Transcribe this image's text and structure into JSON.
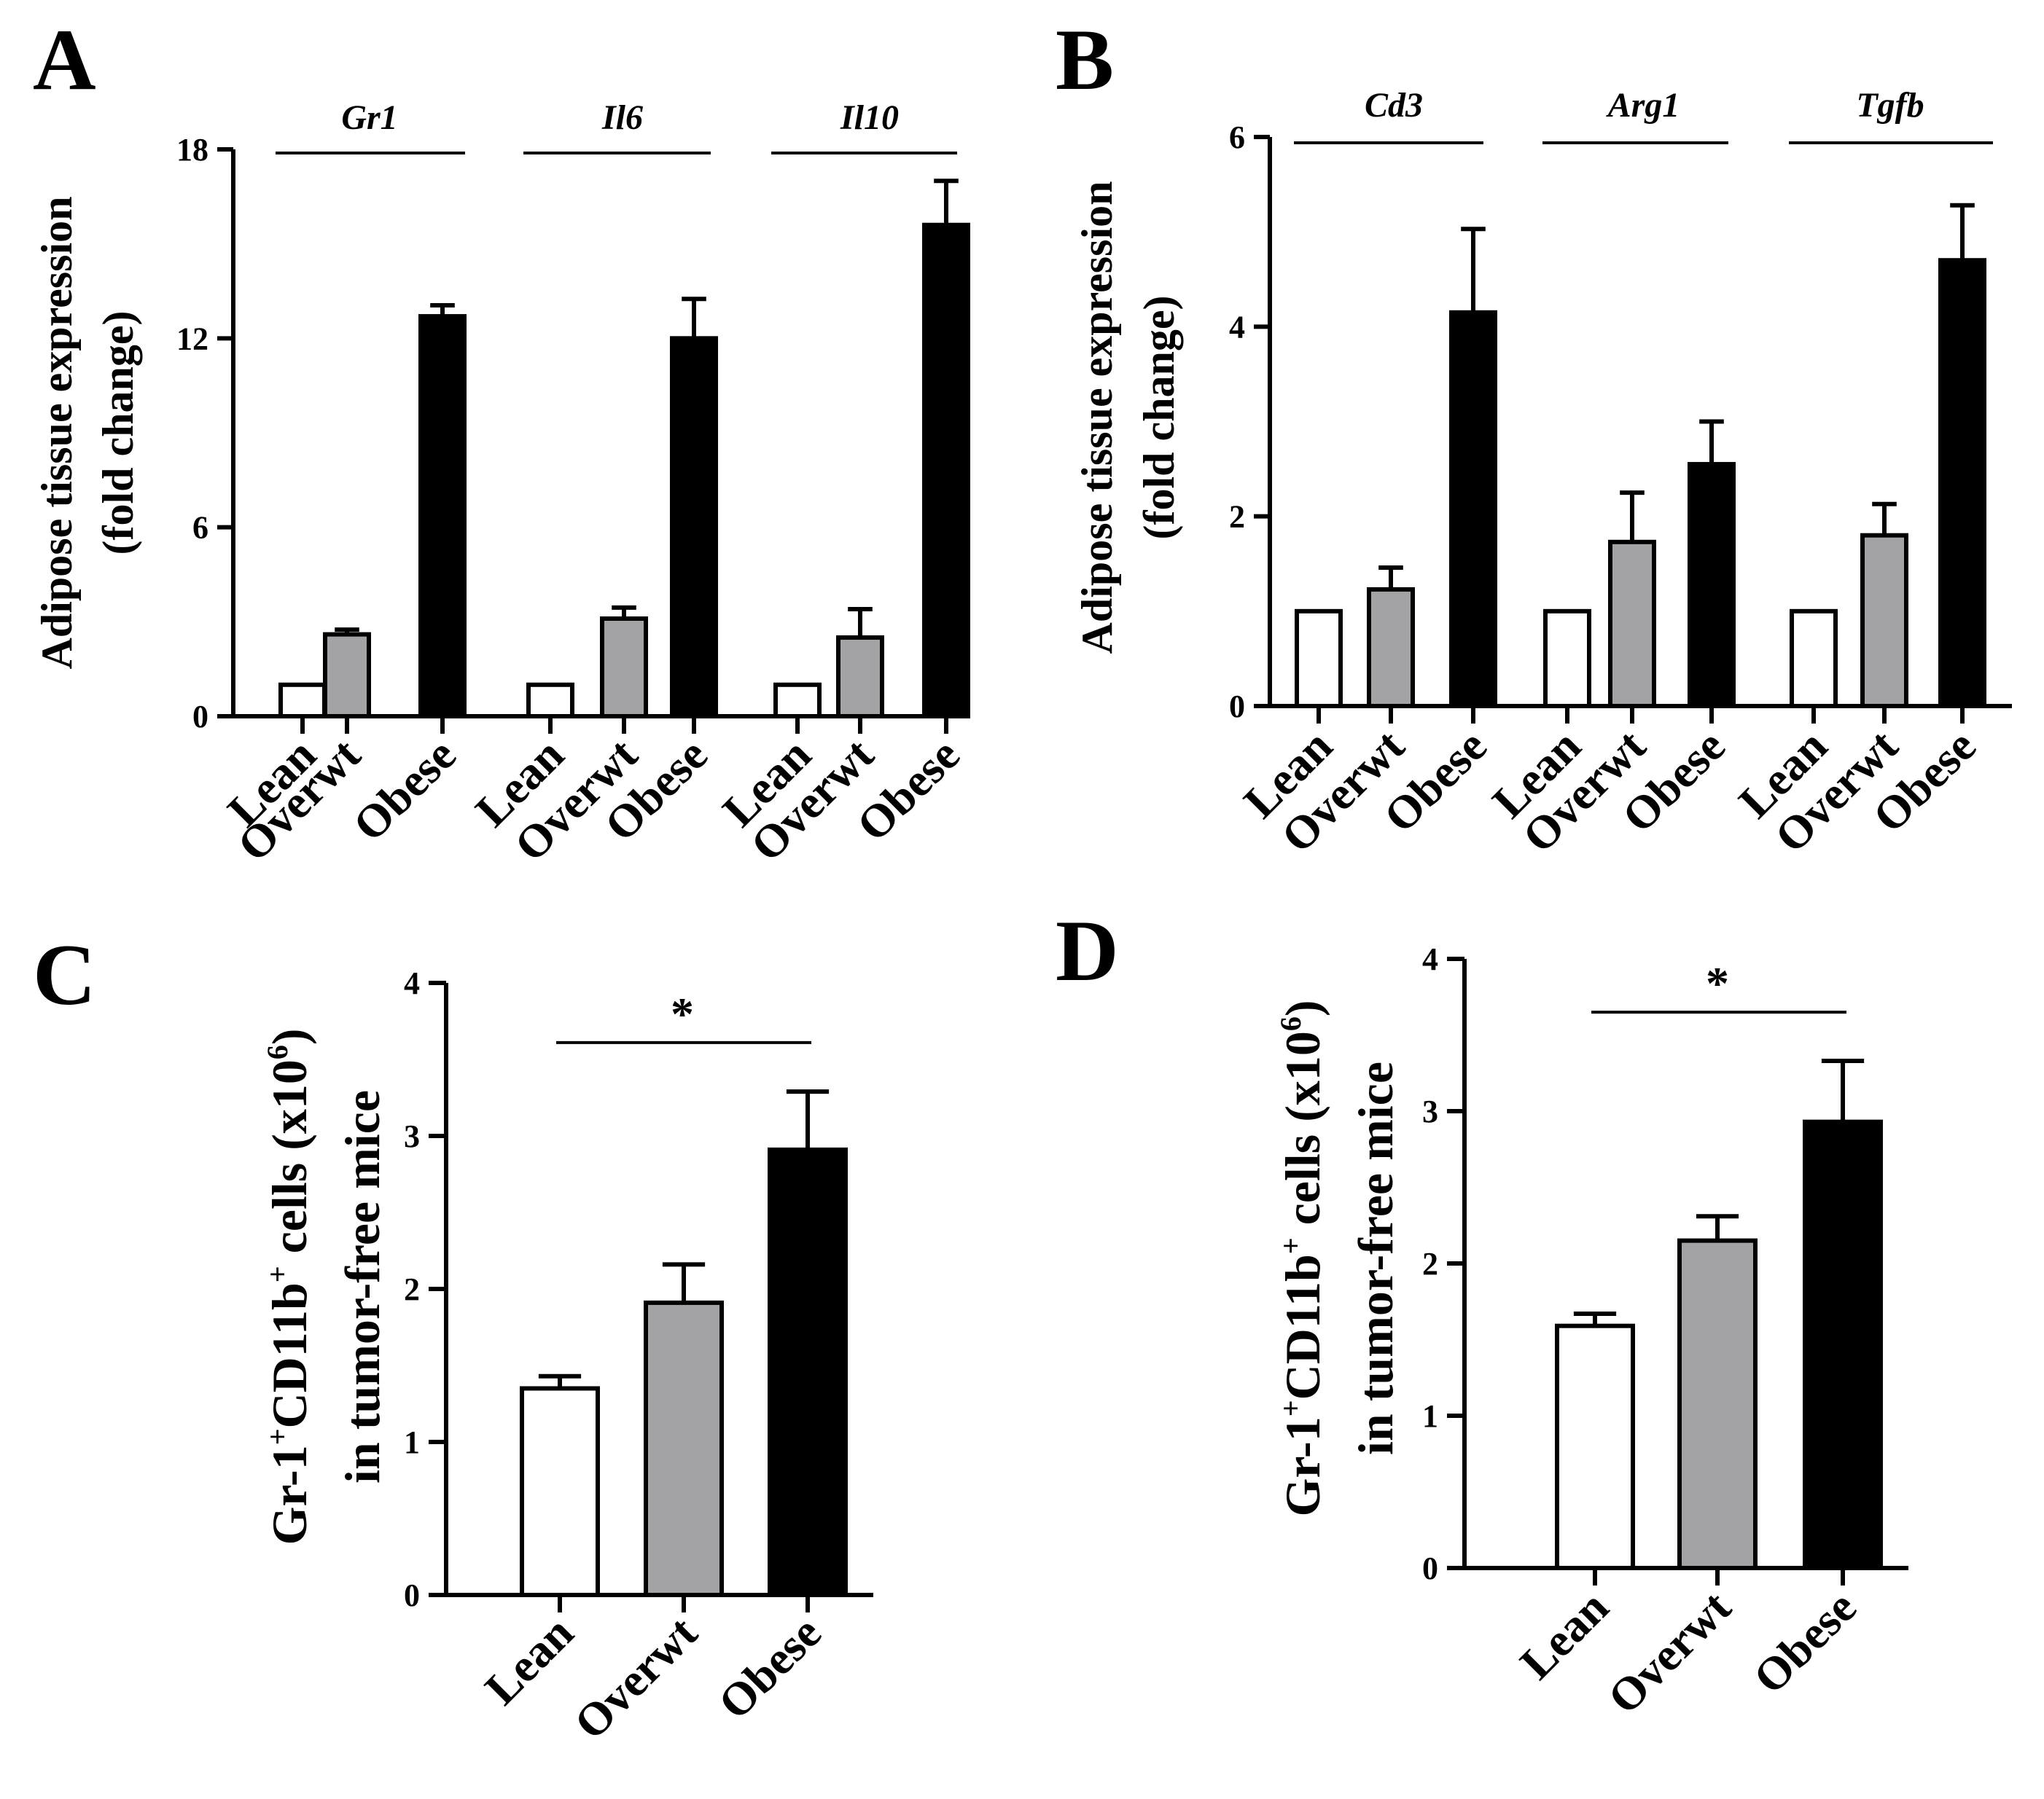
{
  "colors": {
    "lean": "#ffffff",
    "overwt": "#a3a3a6",
    "obese": "#000000",
    "axis": "#000000"
  },
  "chart_data": [
    {
      "panel": "A",
      "type": "bar",
      "ylabel": [
        "Adipose tissue expression",
        "(fold change)"
      ],
      "ylim": [
        0,
        18
      ],
      "yticks": [
        0,
        6,
        12,
        18
      ],
      "ytick_labels": [
        "0",
        "6",
        "12",
        "18"
      ],
      "categories": [
        "Lean",
        "Overwt",
        "Obese"
      ],
      "groups": [
        {
          "gene": "Gr1",
          "values": [
            1.0,
            2.6,
            12.7
          ],
          "errors": [
            0,
            0.15,
            0.35
          ]
        },
        {
          "gene": "Il6",
          "values": [
            1.0,
            3.1,
            12.0
          ],
          "errors": [
            0,
            0.35,
            1.25
          ]
        },
        {
          "gene": "Il10",
          "values": [
            1.0,
            2.5,
            15.6
          ],
          "errors": [
            0,
            0.9,
            1.4
          ]
        }
      ]
    },
    {
      "panel": "B",
      "type": "bar",
      "ylabel": [
        "Adipose tissue expression",
        "(fold change)"
      ],
      "ylim": [
        0,
        6
      ],
      "yticks": [
        0,
        2,
        4,
        6
      ],
      "ytick_labels": [
        "0",
        "2",
        "4",
        "6"
      ],
      "categories": [
        "Lean",
        "Overwt",
        "Obese"
      ],
      "groups": [
        {
          "gene": "Cd3",
          "values": [
            1.0,
            1.23,
            4.15
          ],
          "errors": [
            0,
            0.23,
            0.88
          ]
        },
        {
          "gene": "Arg1",
          "values": [
            1.0,
            1.73,
            2.55
          ],
          "errors": [
            0,
            0.52,
            0.45
          ]
        },
        {
          "gene": "Tgfb",
          "values": [
            1.0,
            1.8,
            4.7
          ],
          "errors": [
            0,
            0.33,
            0.58
          ]
        }
      ]
    },
    {
      "panel": "C",
      "type": "bar",
      "ylabel_line1": {
        "gr": "Gr-1",
        "sup1": "+",
        "cd": "CD11b",
        "sup2": "+",
        "cells": " cells (x10",
        "sup3": "6",
        "close": ")"
      },
      "ylabel_line2": "in tumor-free mice",
      "ylim": [
        0,
        4
      ],
      "yticks": [
        0,
        1,
        2,
        3,
        4
      ],
      "ytick_labels": [
        "0",
        "1",
        "2",
        "3",
        "4"
      ],
      "categories": [
        "Lean",
        "Overwt",
        "Obese"
      ],
      "values": [
        1.35,
        1.91,
        2.91
      ],
      "errors": [
        0.08,
        0.25,
        0.38
      ],
      "significance": {
        "from": "Lean",
        "to": "Obese",
        "label": "*"
      }
    },
    {
      "panel": "D",
      "type": "bar",
      "ylabel_line1": {
        "gr": "Gr-1",
        "sup1": "+",
        "cd": "CD11b",
        "sup2": "+",
        "cells": " cells (x10",
        "sup3": "6",
        "close": ")"
      },
      "ylabel_line2": "in tumor-free mice",
      "ylim": [
        0,
        4
      ],
      "yticks": [
        0,
        1,
        2,
        3,
        4
      ],
      "ytick_labels": [
        "0",
        "1",
        "2",
        "3",
        "4"
      ],
      "categories": [
        "Lean",
        "Overwt",
        "Obese"
      ],
      "values": [
        1.59,
        2.15,
        2.93
      ],
      "errors": [
        0.08,
        0.16,
        0.4
      ],
      "significance": {
        "from": "Lean",
        "to": "Obese",
        "label": "*"
      }
    }
  ]
}
